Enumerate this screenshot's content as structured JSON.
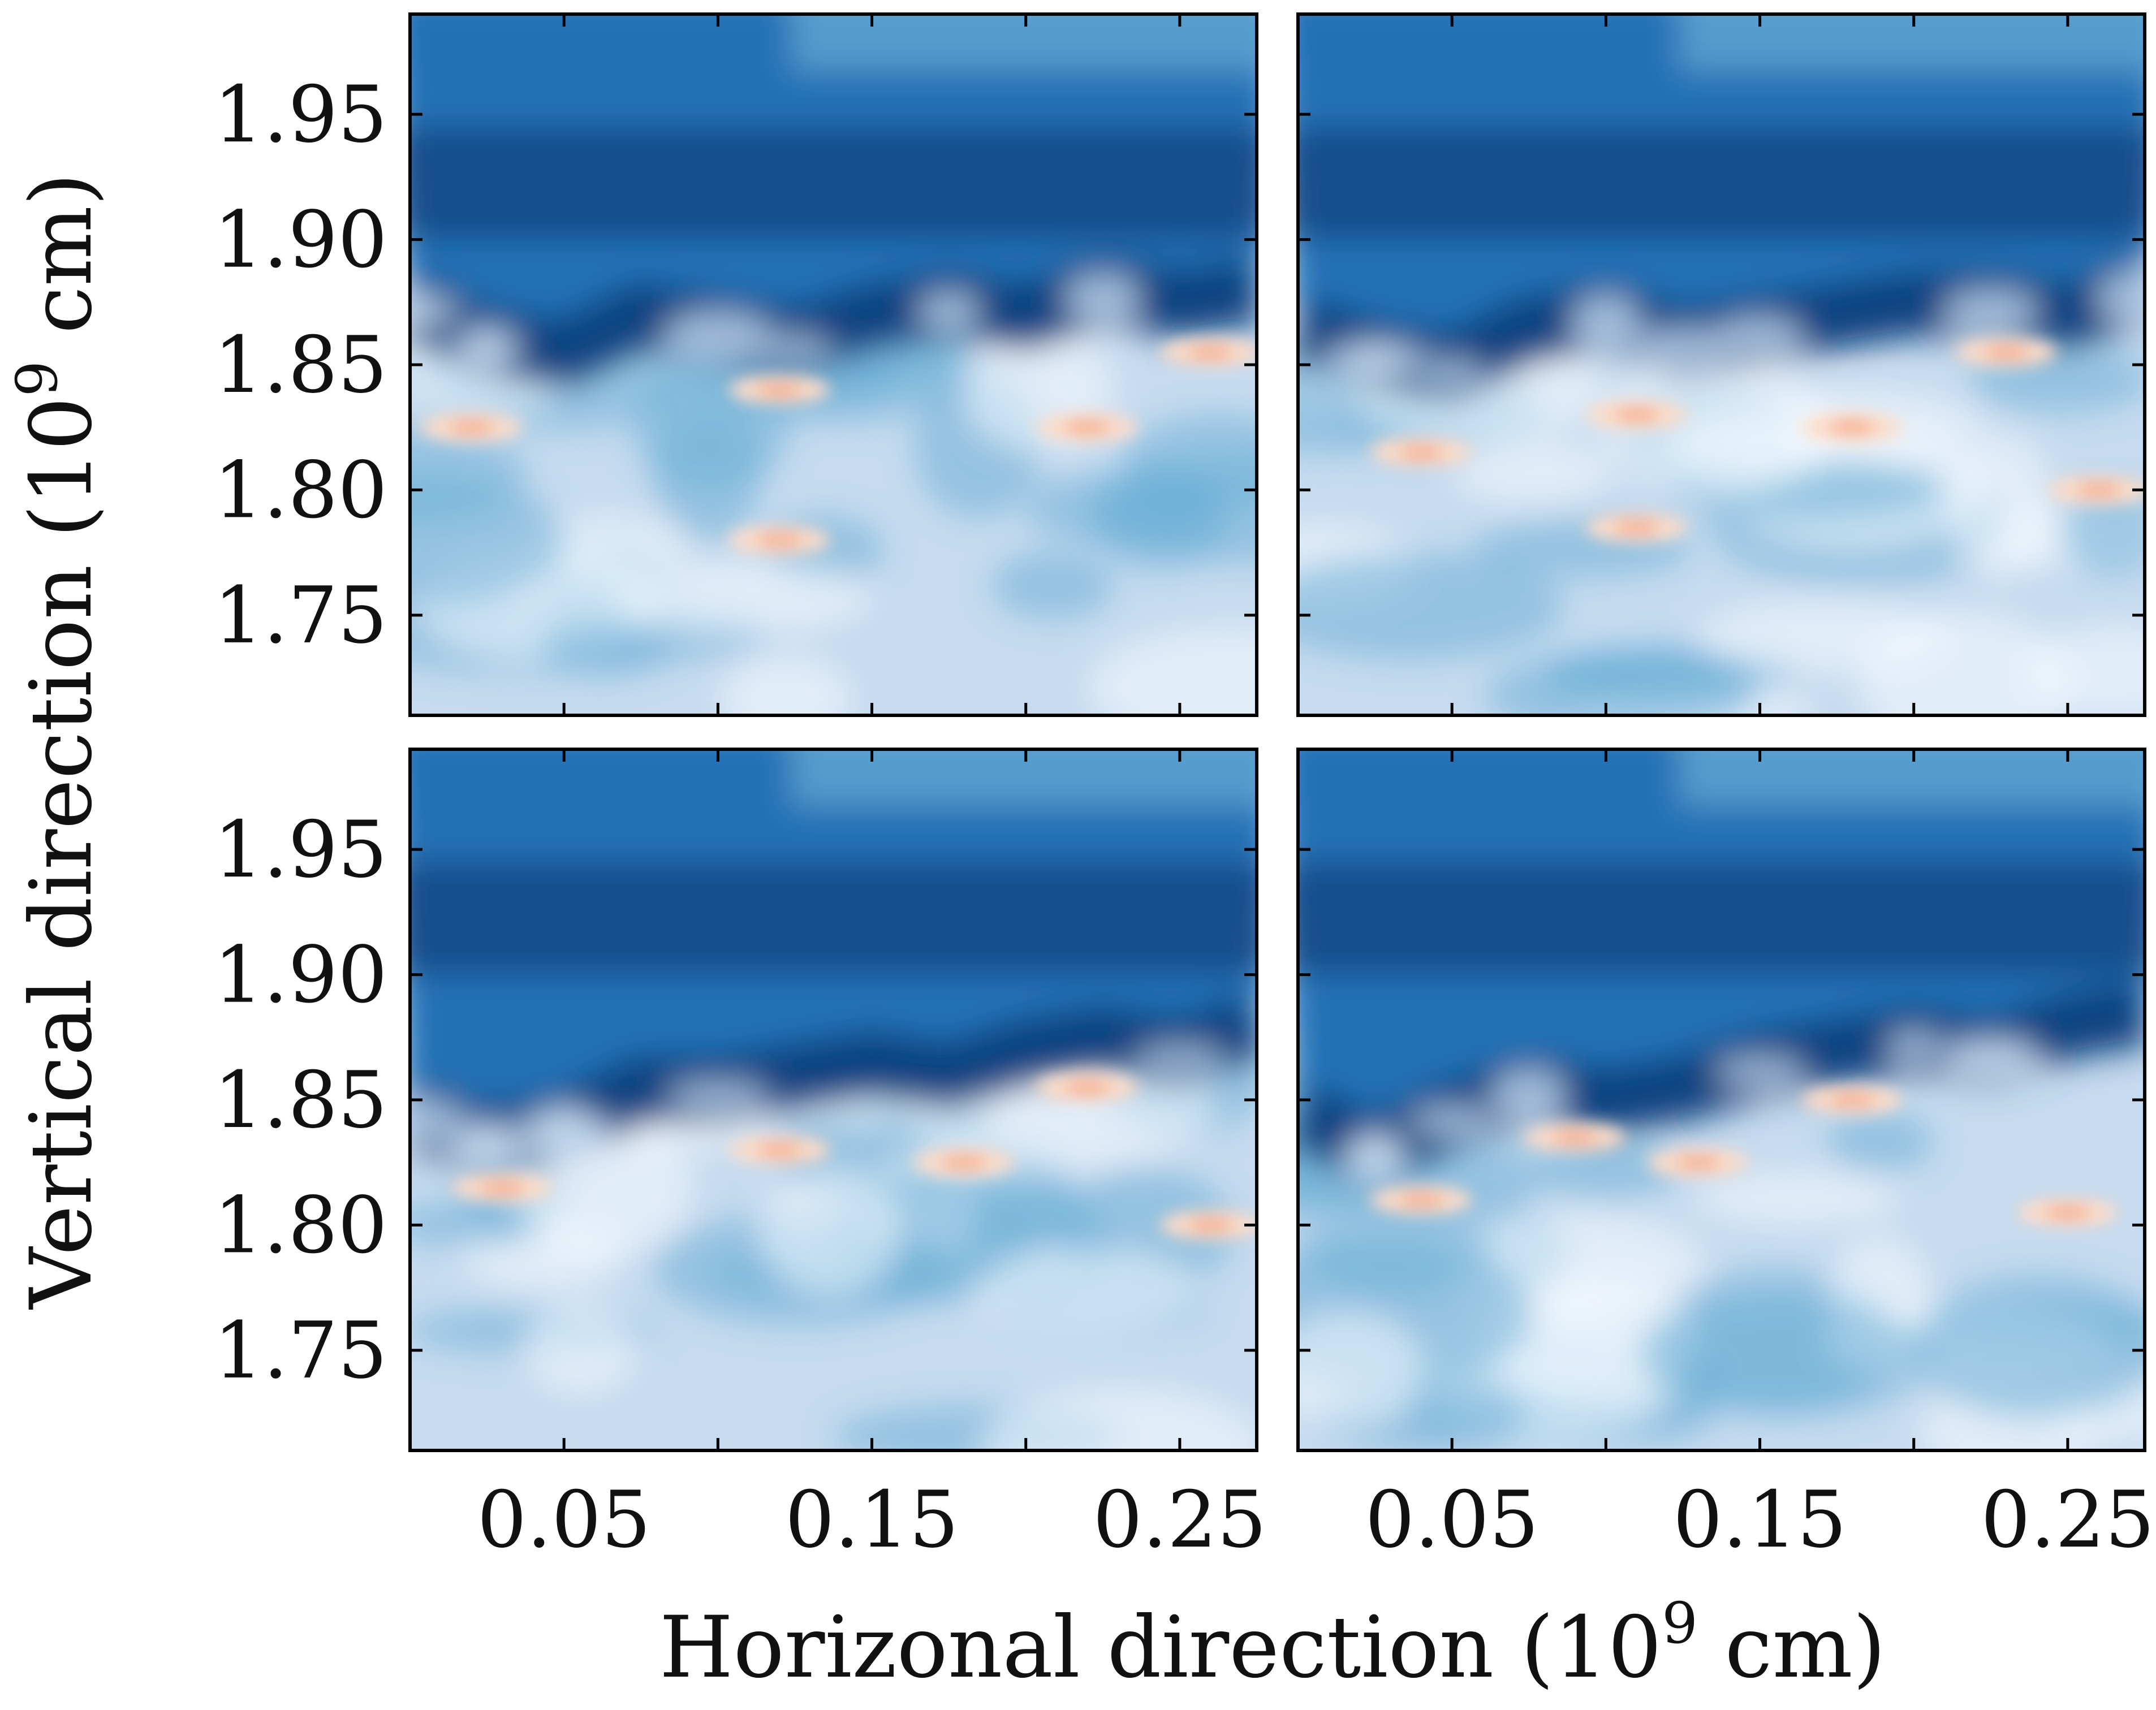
{
  "chart_data": {
    "type": "heatmap",
    "description_note": "2x2 grid of field snapshots, shared axes",
    "xlabel": "Horizonal direction (10",
    "xlabel_sup": "9",
    "xlabel_unit": " cm)",
    "ylabel": "Vertical direction (10",
    "ylabel_sup": "9",
    "ylabel_unit": " cm)",
    "xlim": [
      0.0,
      0.275
    ],
    "ylim": [
      1.71,
      1.99
    ],
    "x_ticks": [
      0.05,
      0.15,
      0.25
    ],
    "x_tick_labels": [
      "0.05",
      "0.15",
      "0.25"
    ],
    "x_minor_ticks": [
      0.05,
      0.1,
      0.15,
      0.2,
      0.25
    ],
    "y_ticks": [
      1.75,
      1.8,
      1.85,
      1.9,
      1.95
    ],
    "y_tick_labels": [
      "1.75",
      "1.80",
      "1.85",
      "1.90",
      "1.95"
    ],
    "colormap": [
      "#08306b",
      "#2171b5",
      "#6baed6",
      "#c6dbef",
      "#f7fbff",
      "#fddbc7",
      "#ef8a62"
    ],
    "panels": [
      {
        "row": 0,
        "col": 0,
        "interface_y": [
          1.865,
          1.85,
          1.845,
          1.86,
          1.855,
          1.85,
          1.86,
          1.865,
          1.86,
          1.87,
          1.865,
          1.87
        ],
        "warm_spots": [
          [
            0.02,
            1.825
          ],
          [
            0.12,
            1.84
          ],
          [
            0.22,
            1.825
          ],
          [
            0.12,
            1.78
          ],
          [
            0.26,
            1.855
          ]
        ]
      },
      {
        "row": 0,
        "col": 1,
        "interface_y": [
          1.855,
          1.845,
          1.84,
          1.855,
          1.86,
          1.85,
          1.855,
          1.86,
          1.865,
          1.865,
          1.86,
          1.87
        ],
        "warm_spots": [
          [
            0.04,
            1.815
          ],
          [
            0.11,
            1.83
          ],
          [
            0.18,
            1.825
          ],
          [
            0.23,
            1.855
          ],
          [
            0.26,
            1.8
          ],
          [
            0.11,
            1.785
          ]
        ]
      },
      {
        "row": 1,
        "col": 0,
        "interface_y": [
          1.835,
          1.825,
          1.83,
          1.845,
          1.845,
          1.85,
          1.855,
          1.85,
          1.86,
          1.865,
          1.86,
          1.87
        ],
        "warm_spots": [
          [
            0.12,
            1.83
          ],
          [
            0.22,
            1.855
          ],
          [
            0.03,
            1.815
          ],
          [
            0.26,
            1.8
          ],
          [
            0.18,
            1.825
          ]
        ]
      },
      {
        "row": 1,
        "col": 1,
        "interface_y": [
          1.835,
          1.82,
          1.835,
          1.845,
          1.84,
          1.845,
          1.855,
          1.86,
          1.865,
          1.86,
          1.87,
          1.875
        ],
        "warm_spots": [
          [
            0.18,
            1.85
          ],
          [
            0.13,
            1.825
          ],
          [
            0.04,
            1.81
          ],
          [
            0.25,
            1.805
          ],
          [
            0.09,
            1.835
          ]
        ]
      }
    ]
  }
}
